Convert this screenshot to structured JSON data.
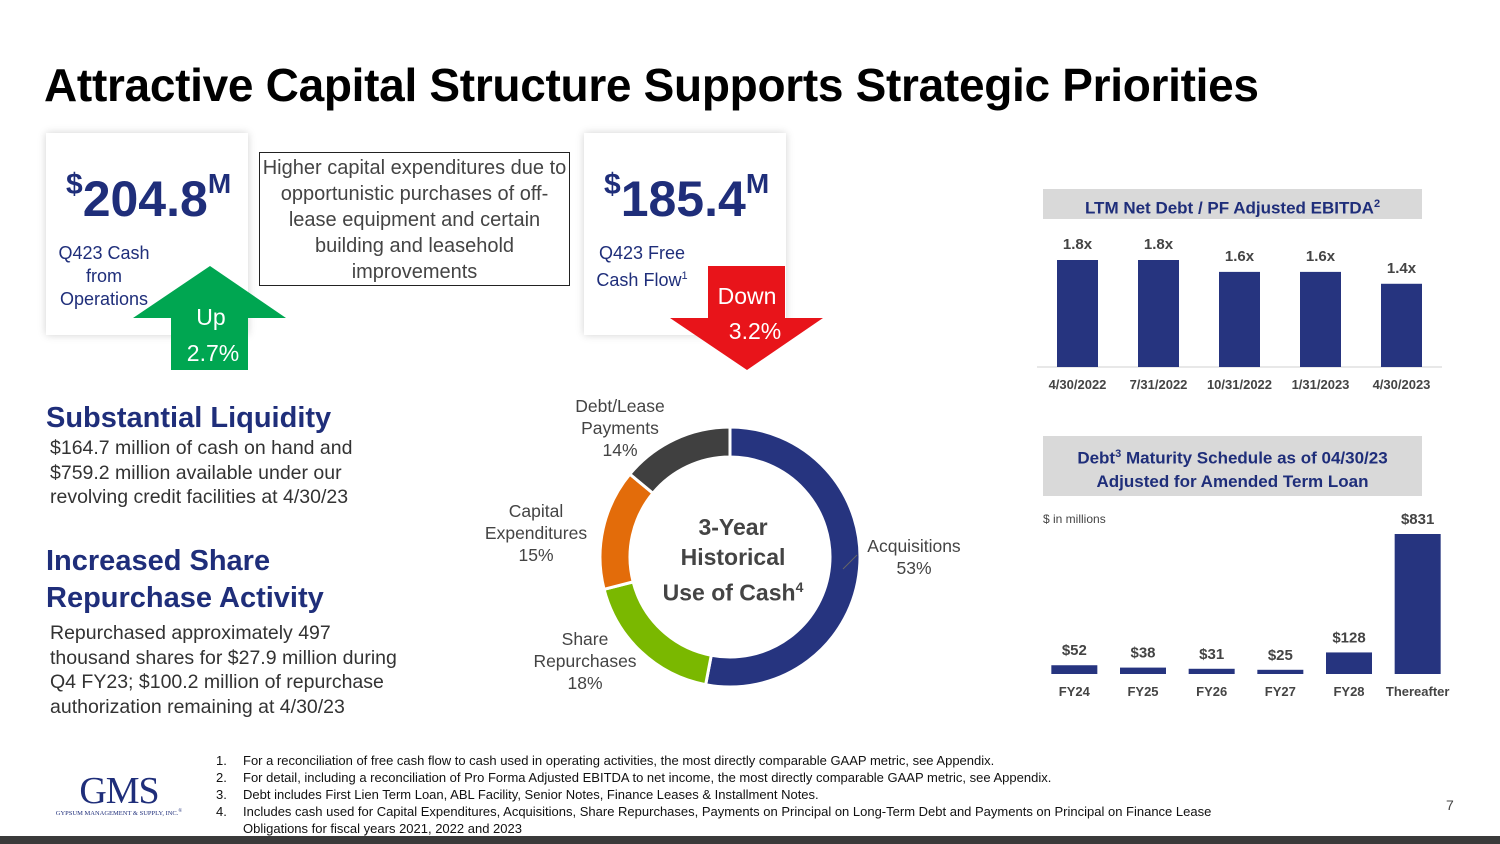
{
  "title": "Attractive Capital Structure Supports Strategic Priorities",
  "cash_ops": {
    "prefix": "$",
    "value": "204.8",
    "suffix": "M",
    "label_lines": [
      "Q423 Cash",
      "from",
      "Operations"
    ],
    "change_dir": "Up",
    "change_pct": "2.7%",
    "arrow_color": "#00a651"
  },
  "free_cash": {
    "prefix": "$",
    "value": "185.4",
    "suffix": "M",
    "label_lines": [
      "Q423 Free",
      "Cash Flow"
    ],
    "label_sup": "1",
    "change_dir": "Down",
    "change_pct": "3.2%",
    "arrow_color": "#e8141a"
  },
  "capex_note": "Higher capital expenditures due to opportunistic purchases of off-lease equipment and certain building and leasehold improvements",
  "liquidity": {
    "heading": "Substantial Liquidity",
    "body": "$164.7 million of cash on hand and $759.2 million available under our revolving credit facilities at 4/30/23"
  },
  "repurchase": {
    "heading_lines": [
      "Increased Share",
      "Repurchase Activity"
    ],
    "body": "Repurchased approximately 497 thousand shares for $27.9 million during Q4 FY23; $100.2 million of repurchase authorization remaining at 4/30/23"
  },
  "colors": {
    "navy": "#1f2e7a",
    "orange": "#e36c0a",
    "green": "#7ab800",
    "dark": "#404040"
  },
  "chart_data": [
    {
      "type": "pie",
      "title": "3-Year Historical Use of Cash",
      "title_lines": [
        "3-Year",
        "Historical",
        "Use of Cash"
      ],
      "title_sup": "4",
      "donut": true,
      "slices": [
        {
          "name": "Acquisitions",
          "value": 53,
          "label": "53%",
          "color": "#26347f"
        },
        {
          "name": "Share Repurchases",
          "value": 18,
          "label": "18%",
          "color": "#7ab800"
        },
        {
          "name": "Capital Expenditures",
          "value": 15,
          "label": "15%",
          "color": "#e36c0a"
        },
        {
          "name": "Debt/Lease Payments",
          "value": 14,
          "label": "14%",
          "color": "#404040"
        }
      ]
    },
    {
      "type": "bar",
      "title": "LTM Net Debt / PF Adjusted EBITDA",
      "title_sup": "2",
      "categories": [
        "4/30/2022",
        "7/31/2022",
        "10/31/2022",
        "1/31/2023",
        "4/30/2023"
      ],
      "values": [
        1.8,
        1.8,
        1.6,
        1.6,
        1.4
      ],
      "data_labels": [
        "1.8x",
        "1.8x",
        "1.6x",
        "1.6x",
        "1.4x"
      ],
      "ylim": [
        0,
        1.8
      ],
      "color": "#26347f",
      "grid": false
    },
    {
      "type": "bar",
      "title": "Debt³ Maturity Schedule as of 04/30/23 Adjusted for Amended Term Loan",
      "title_lines": [
        "Debt",
        "Maturity Schedule as of 04/30/23",
        "Adjusted for Amended Term Loan"
      ],
      "title_sup": "3",
      "unit_note": "$ in millions",
      "categories": [
        "FY24",
        "FY25",
        "FY26",
        "FY27",
        "FY28",
        "Thereafter"
      ],
      "values": [
        52,
        38,
        31,
        25,
        128,
        831
      ],
      "data_labels": [
        "$52",
        "$38",
        "$31",
        "$25",
        "$128",
        "$831"
      ],
      "ylim": [
        0,
        831
      ],
      "color": "#26347f",
      "grid": false
    }
  ],
  "footnotes": [
    {
      "n": "1.",
      "text": "For a reconciliation of free cash flow to cash used in operating activities, the most directly comparable GAAP metric, see Appendix."
    },
    {
      "n": "2.",
      "text": "For detail, including a reconciliation of Pro Forma Adjusted EBITDA to net income, the most directly comparable GAAP metric, see Appendix."
    },
    {
      "n": "3.",
      "text": "Debt includes First Lien Term Loan, ABL Facility, Senior Notes, Finance Leases & Installment Notes."
    },
    {
      "n": "4.",
      "text": "Includes cash used for Capital Expenditures, Acquisitions, Share Repurchases, Payments on Principal on Long-Term Debt and Payments on Principal on Finance Lease",
      "cont": "Obligations for fiscal years 2021, 2022 and 2023"
    }
  ],
  "logo": {
    "mark": "GMS",
    "tagline": "GYPSUM MANAGEMENT & SUPPLY, INC.",
    "reg": "®"
  },
  "page_number": "7"
}
